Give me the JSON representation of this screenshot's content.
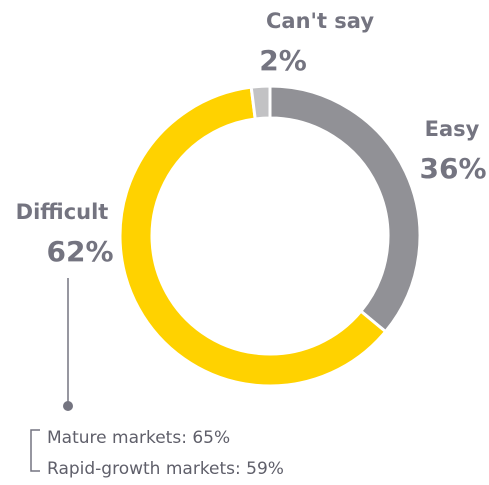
{
  "chart_data": {
    "type": "donut",
    "categories": [
      "Easy",
      "Difficult",
      "Can't say"
    ],
    "values": [
      36,
      62,
      2
    ],
    "value_labels": [
      "36%",
      "62%",
      "2%"
    ],
    "colors": [
      "#919196",
      "#ffd200",
      "#c2c2c4"
    ],
    "annotations": [
      "Mature markets: 65%",
      "Rapid-growth markets: 59%"
    ]
  }
}
